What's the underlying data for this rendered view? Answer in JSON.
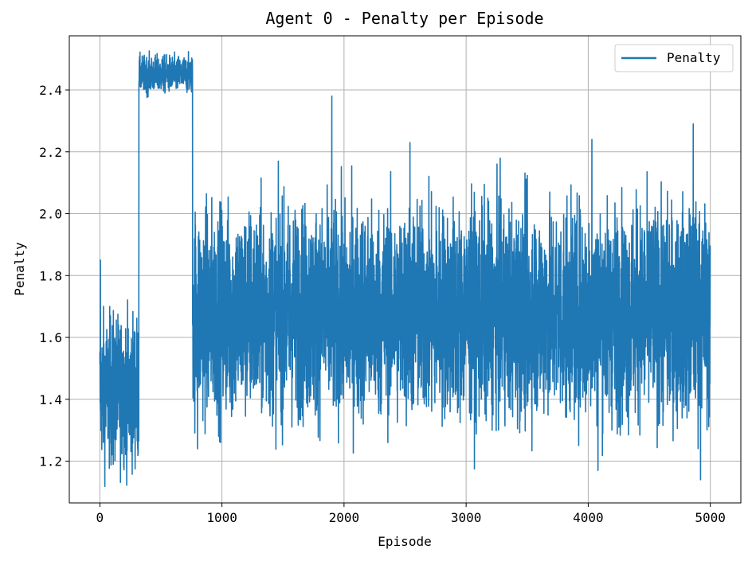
{
  "chart_data": {
    "type": "line",
    "title": "Agent 0 - Penalty per Episode",
    "xlabel": "Episode",
    "ylabel": "Penalty",
    "xlim": [
      -250,
      5250
    ],
    "ylim": [
      1.065,
      2.575
    ],
    "xticks": [
      0,
      1000,
      2000,
      3000,
      4000,
      5000
    ],
    "xtick_labels": [
      "0",
      "1000",
      "2000",
      "3000",
      "4000",
      "5000"
    ],
    "yticks": [
      1.2,
      1.4,
      1.6,
      1.8,
      2.0,
      2.2,
      2.4
    ],
    "ytick_labels": [
      "1.2",
      "1.4",
      "1.6",
      "1.8",
      "2.0",
      "2.2",
      "2.4"
    ],
    "grid": true,
    "legend_position": "top-right",
    "series": [
      {
        "name": "Penalty",
        "color": "#1f77b4",
        "episodes": 5000,
        "segments": [
          {
            "start": 0,
            "end": 320,
            "center": 1.43,
            "spread": 0.12
          },
          {
            "start": 320,
            "end": 760,
            "center": 2.45,
            "spread": 0.03
          },
          {
            "start": 760,
            "end": 5000,
            "center": 1.68,
            "spread": 0.17
          }
        ],
        "spikes": [
          {
            "x": 5,
            "y": 1.85
          },
          {
            "x": 110,
            "y": 1.19
          },
          {
            "x": 800,
            "y": 1.24
          },
          {
            "x": 1900,
            "y": 2.38
          },
          {
            "x": 2540,
            "y": 2.23
          },
          {
            "x": 4030,
            "y": 2.24
          },
          {
            "x": 4080,
            "y": 1.17
          },
          {
            "x": 4860,
            "y": 2.29
          },
          {
            "x": 4920,
            "y": 1.14
          }
        ]
      }
    ]
  }
}
